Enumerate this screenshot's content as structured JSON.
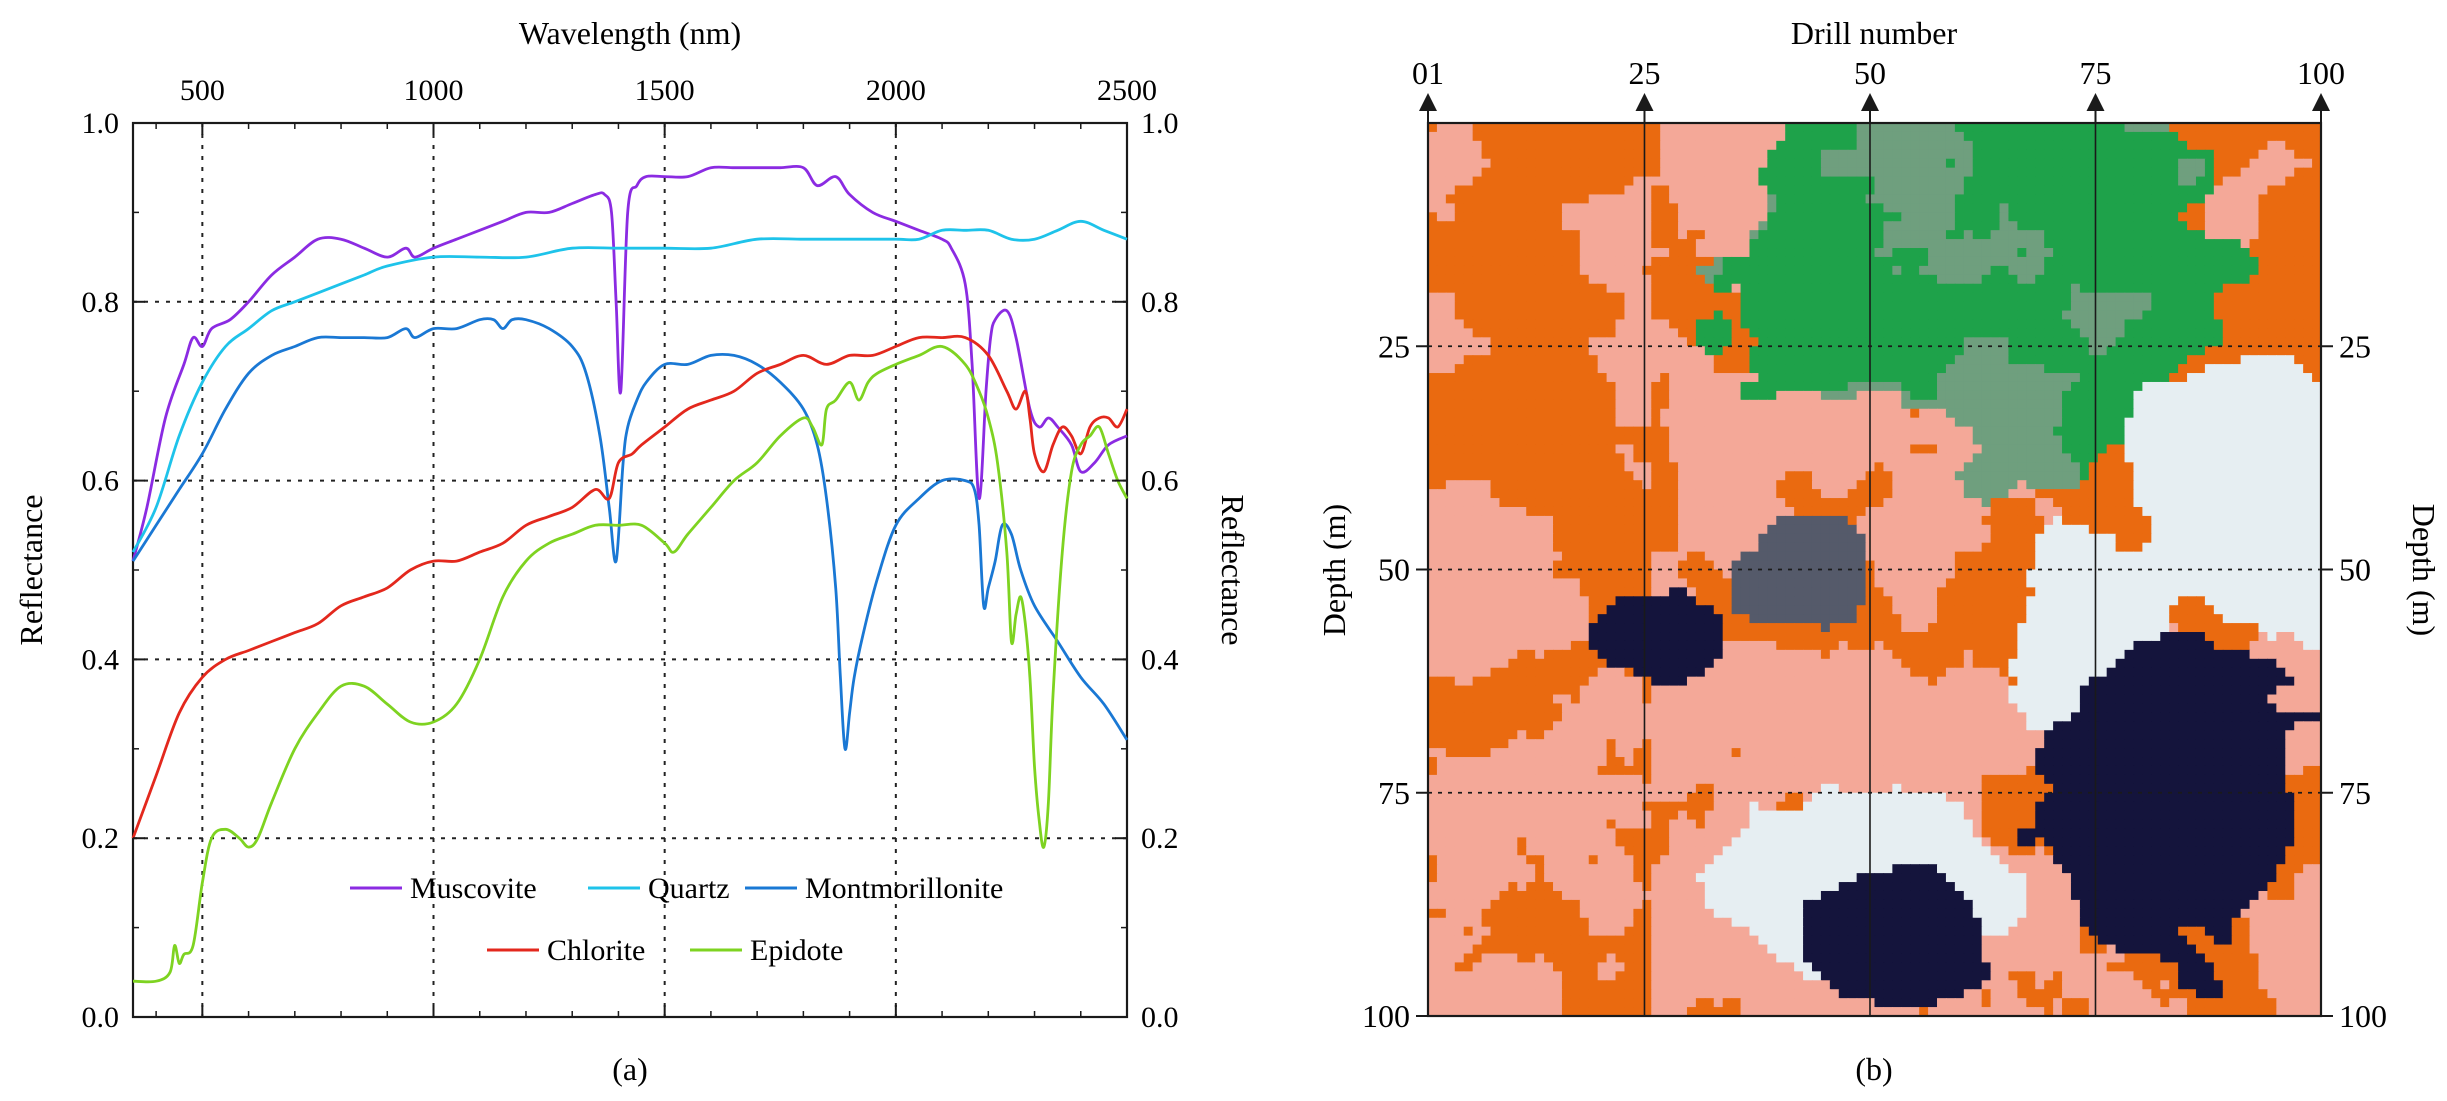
{
  "panel_a": {
    "caption": "(a)",
    "chart_data": {
      "type": "line",
      "title": "",
      "xlabel": "Wavelength (nm)",
      "ylabel": "Reflectance",
      "ylabel_right": "Reflectance",
      "xlim": [
        350,
        2500
      ],
      "ylim": [
        0,
        1
      ],
      "x_ticks": [
        500,
        1000,
        1500,
        2000,
        2500
      ],
      "y_ticks": [
        "0.0",
        "0.2",
        "0.4",
        "0.6",
        "0.8",
        "1.0"
      ],
      "grid": true,
      "legend_position": "bottom-center",
      "series": [
        {
          "name": "Muscovite",
          "color": "#8b2be2",
          "x": [
            350,
            380,
            420,
            460,
            480,
            500,
            520,
            560,
            600,
            650,
            700,
            750,
            800,
            850,
            900,
            940,
            960,
            1000,
            1050,
            1100,
            1150,
            1200,
            1250,
            1300,
            1350,
            1370,
            1385,
            1395,
            1405,
            1420,
            1440,
            1460,
            1500,
            1550,
            1600,
            1650,
            1700,
            1750,
            1800,
            1830,
            1870,
            1900,
            1950,
            2000,
            2050,
            2100,
            2120,
            2150,
            2165,
            2180,
            2195,
            2205,
            2215,
            2240,
            2260,
            2290,
            2310,
            2330,
            2350,
            2380,
            2400,
            2430,
            2460,
            2500
          ],
          "y": [
            0.51,
            0.57,
            0.67,
            0.73,
            0.76,
            0.75,
            0.77,
            0.78,
            0.8,
            0.83,
            0.85,
            0.87,
            0.87,
            0.86,
            0.85,
            0.86,
            0.85,
            0.86,
            0.87,
            0.88,
            0.89,
            0.9,
            0.9,
            0.91,
            0.92,
            0.92,
            0.9,
            0.8,
            0.7,
            0.9,
            0.93,
            0.94,
            0.94,
            0.94,
            0.95,
            0.95,
            0.95,
            0.95,
            0.95,
            0.93,
            0.94,
            0.92,
            0.9,
            0.89,
            0.88,
            0.87,
            0.86,
            0.82,
            0.73,
            0.58,
            0.7,
            0.76,
            0.78,
            0.79,
            0.76,
            0.68,
            0.66,
            0.67,
            0.66,
            0.64,
            0.61,
            0.62,
            0.64,
            0.65
          ]
        },
        {
          "name": "Quartz",
          "color": "#1ec3ea",
          "x": [
            350,
            400,
            450,
            500,
            550,
            600,
            650,
            700,
            750,
            800,
            850,
            900,
            1000,
            1100,
            1200,
            1300,
            1400,
            1500,
            1600,
            1700,
            1800,
            1900,
            2000,
            2050,
            2100,
            2150,
            2200,
            2250,
            2300,
            2350,
            2400,
            2450,
            2500
          ],
          "y": [
            0.52,
            0.57,
            0.65,
            0.71,
            0.75,
            0.77,
            0.79,
            0.8,
            0.81,
            0.82,
            0.83,
            0.84,
            0.85,
            0.85,
            0.85,
            0.86,
            0.86,
            0.86,
            0.86,
            0.87,
            0.87,
            0.87,
            0.87,
            0.87,
            0.88,
            0.88,
            0.88,
            0.87,
            0.87,
            0.88,
            0.89,
            0.88,
            0.87
          ]
        },
        {
          "name": "Montmorillonite",
          "color": "#1a78d4",
          "x": [
            350,
            400,
            450,
            500,
            550,
            600,
            650,
            700,
            750,
            800,
            850,
            900,
            940,
            960,
            1000,
            1050,
            1100,
            1130,
            1150,
            1170,
            1200,
            1250,
            1300,
            1330,
            1360,
            1380,
            1395,
            1410,
            1420,
            1440,
            1460,
            1500,
            1550,
            1600,
            1650,
            1700,
            1750,
            1800,
            1830,
            1850,
            1870,
            1880,
            1890,
            1900,
            1910,
            1930,
            1960,
            2000,
            2050,
            2100,
            2150,
            2170,
            2180,
            2190,
            2200,
            2215,
            2230,
            2250,
            2270,
            2300,
            2350,
            2400,
            2450,
            2500
          ],
          "y": [
            0.51,
            0.55,
            0.59,
            0.63,
            0.68,
            0.72,
            0.74,
            0.75,
            0.76,
            0.76,
            0.76,
            0.76,
            0.77,
            0.76,
            0.77,
            0.77,
            0.78,
            0.78,
            0.77,
            0.78,
            0.78,
            0.77,
            0.75,
            0.72,
            0.65,
            0.57,
            0.51,
            0.62,
            0.66,
            0.69,
            0.71,
            0.73,
            0.73,
            0.74,
            0.74,
            0.73,
            0.71,
            0.68,
            0.64,
            0.58,
            0.48,
            0.38,
            0.3,
            0.34,
            0.38,
            0.43,
            0.49,
            0.55,
            0.58,
            0.6,
            0.6,
            0.59,
            0.55,
            0.46,
            0.48,
            0.51,
            0.55,
            0.54,
            0.5,
            0.46,
            0.42,
            0.38,
            0.35,
            0.31
          ]
        },
        {
          "name": "Chlorite",
          "color": "#e3281d",
          "x": [
            350,
            400,
            450,
            500,
            550,
            600,
            650,
            700,
            750,
            800,
            850,
            900,
            950,
            1000,
            1050,
            1100,
            1150,
            1200,
            1250,
            1300,
            1350,
            1380,
            1400,
            1430,
            1450,
            1500,
            1550,
            1600,
            1650,
            1700,
            1750,
            1800,
            1850,
            1900,
            1950,
            2000,
            2050,
            2100,
            2150,
            2200,
            2240,
            2260,
            2280,
            2290,
            2300,
            2320,
            2340,
            2360,
            2380,
            2400,
            2420,
            2440,
            2460,
            2480,
            2500
          ],
          "y": [
            0.2,
            0.27,
            0.34,
            0.38,
            0.4,
            0.41,
            0.42,
            0.43,
            0.44,
            0.46,
            0.47,
            0.48,
            0.5,
            0.51,
            0.51,
            0.52,
            0.53,
            0.55,
            0.56,
            0.57,
            0.59,
            0.58,
            0.62,
            0.63,
            0.64,
            0.66,
            0.68,
            0.69,
            0.7,
            0.72,
            0.73,
            0.74,
            0.73,
            0.74,
            0.74,
            0.75,
            0.76,
            0.76,
            0.76,
            0.74,
            0.7,
            0.68,
            0.7,
            0.67,
            0.63,
            0.61,
            0.64,
            0.66,
            0.65,
            0.63,
            0.66,
            0.67,
            0.67,
            0.66,
            0.68
          ]
        },
        {
          "name": "Epidote",
          "color": "#7ed321",
          "x": [
            350,
            400,
            430,
            440,
            450,
            460,
            480,
            500,
            520,
            550,
            580,
            600,
            620,
            650,
            700,
            750,
            800,
            850,
            900,
            950,
            1000,
            1050,
            1100,
            1150,
            1200,
            1250,
            1300,
            1350,
            1400,
            1450,
            1500,
            1520,
            1550,
            1600,
            1650,
            1700,
            1750,
            1800,
            1820,
            1840,
            1850,
            1870,
            1900,
            1920,
            1940,
            1960,
            2000,
            2050,
            2100,
            2150,
            2180,
            2200,
            2220,
            2240,
            2250,
            2260,
            2270,
            2280,
            2290,
            2300,
            2310,
            2320,
            2330,
            2340,
            2360,
            2380,
            2400,
            2420,
            2440,
            2460,
            2480,
            2500
          ],
          "y": [
            0.04,
            0.04,
            0.05,
            0.08,
            0.06,
            0.07,
            0.08,
            0.15,
            0.2,
            0.21,
            0.2,
            0.19,
            0.2,
            0.24,
            0.3,
            0.34,
            0.37,
            0.37,
            0.35,
            0.33,
            0.33,
            0.35,
            0.4,
            0.47,
            0.51,
            0.53,
            0.54,
            0.55,
            0.55,
            0.55,
            0.53,
            0.52,
            0.54,
            0.57,
            0.6,
            0.62,
            0.65,
            0.67,
            0.66,
            0.64,
            0.68,
            0.69,
            0.71,
            0.69,
            0.71,
            0.72,
            0.73,
            0.74,
            0.75,
            0.73,
            0.7,
            0.67,
            0.62,
            0.52,
            0.42,
            0.45,
            0.47,
            0.44,
            0.38,
            0.28,
            0.22,
            0.19,
            0.24,
            0.36,
            0.52,
            0.61,
            0.64,
            0.65,
            0.66,
            0.63,
            0.6,
            0.58
          ]
        }
      ]
    }
  },
  "panel_b": {
    "caption": "(b)",
    "chart_data": {
      "type": "heatmap",
      "title": "",
      "xlabel": "Drill number",
      "ylabel": "Depth (m)",
      "ylabel_right": "Depth (m)",
      "x_ticks": [
        "01",
        "25",
        "50",
        "75",
        "100"
      ],
      "y_ticks_left": [
        "25",
        "50",
        "75",
        "100"
      ],
      "y_ticks_right": [
        "25",
        "50",
        "75",
        "100"
      ],
      "xlim": [
        1,
        100
      ],
      "ylim": [
        0,
        100
      ],
      "grid": true,
      "palette": {
        "orange": "#ea6a10",
        "salmon": "#f4a898",
        "green": "#1ea24a",
        "green_gray": "#6f9f7e",
        "white": "#e6eef2",
        "navy": "#14143c",
        "slate": "#555a6a"
      }
    }
  }
}
